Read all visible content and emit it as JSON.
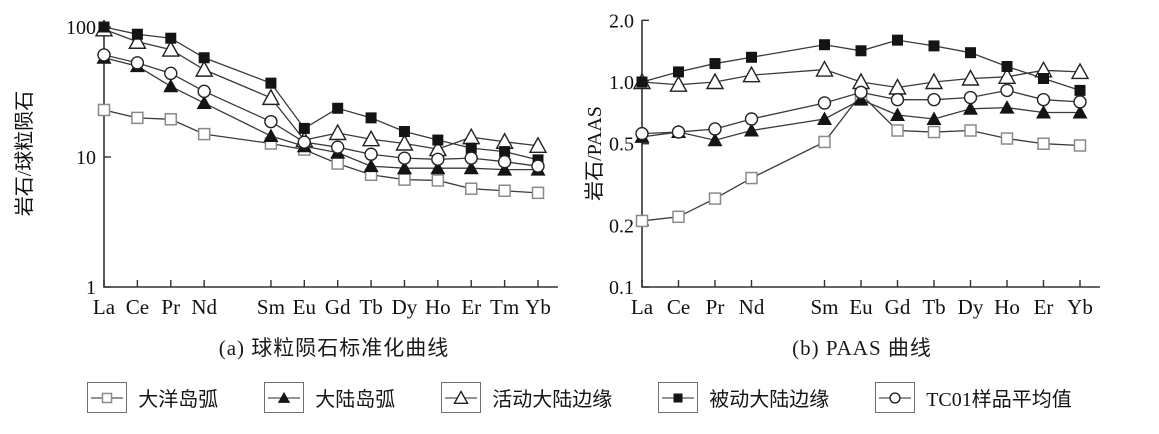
{
  "figure": {
    "background": "#ffffff",
    "caption_a": "(a) 球粒陨石标准化曲线",
    "caption_b": "(b) PAAS 曲线"
  },
  "colors": {
    "axis": "#333333",
    "line": "#3a3a3a",
    "marker_fill": "#141414",
    "marker_stroke": "#222222",
    "open_square_stroke": "#8a8a8a",
    "text": "#111111"
  },
  "chart_data": [
    {
      "type": "line",
      "title": "(a) 球粒陨石标准化曲线",
      "xlabel": "",
      "ylabel": "岩石/球粒陨石",
      "yscale": "log",
      "ylim": [
        1,
        110
      ],
      "yticks": [
        "100",
        "10",
        "1"
      ],
      "grid": false,
      "legend_position": "bottom-shared",
      "categories": [
        "La",
        "Ce",
        "Pr",
        "Nd",
        "Sm",
        "Eu",
        "Gd",
        "Tb",
        "Dy",
        "Ho",
        "Er",
        "Tm",
        "Yb"
      ],
      "gap_after_category": "Nd",
      "series": [
        {
          "name": "大洋岛弧",
          "marker": "open-square",
          "values": [
            23,
            20,
            19.5,
            15,
            12.7,
            11.4,
            8.9,
            7.3,
            6.7,
            6.6,
            5.7,
            5.5,
            5.3
          ]
        },
        {
          "name": "大陆岛弧",
          "marker": "filled-triangle",
          "values": [
            58,
            50,
            35,
            26,
            14.5,
            12.1,
            10.8,
            8.5,
            8.2,
            8.2,
            8.2,
            8.0,
            8.0
          ]
        },
        {
          "name": "活动大陆边缘",
          "marker": "open-triangle",
          "values": [
            96,
            77,
            67,
            47,
            28.5,
            13.5,
            15.3,
            13.7,
            12.7,
            11.5,
            14.2,
            13.1,
            12.2
          ]
        },
        {
          "name": "被动大陆边缘",
          "marker": "filled-square",
          "values": [
            100,
            88,
            82,
            58,
            37,
            16.6,
            23.7,
            20,
            15.7,
            13.5,
            11.7,
            11,
            9.5
          ]
        },
        {
          "name": "TC01样品平均值",
          "marker": "open-circle",
          "values": [
            61,
            53,
            44,
            32,
            18.7,
            13.0,
            11.9,
            10.5,
            9.8,
            9.6,
            9.8,
            9.2,
            8.5
          ]
        }
      ]
    },
    {
      "type": "line",
      "title": "(b) PAAS 曲线",
      "xlabel": "",
      "ylabel": "岩石/PAAS",
      "yscale": "log",
      "ylim": [
        0.1,
        2.0
      ],
      "yticks": [
        "2.0",
        "1.0",
        "0.5",
        "0.2",
        "0.1"
      ],
      "grid": false,
      "legend_position": "bottom-shared",
      "categories": [
        "La",
        "Ce",
        "Pr",
        "Nd",
        "Sm",
        "Eu",
        "Gd",
        "Tb",
        "Dy",
        "Ho",
        "Er",
        "Yb"
      ],
      "gap_after_category": "Nd",
      "series": [
        {
          "name": "大洋岛弧",
          "marker": "open-square",
          "values": [
            0.21,
            0.22,
            0.27,
            0.34,
            0.51,
            0.87,
            0.58,
            0.57,
            0.58,
            0.53,
            0.5,
            0.49
          ]
        },
        {
          "name": "大陆岛弧",
          "marker": "filled-triangle",
          "values": [
            0.54,
            0.57,
            0.52,
            0.58,
            0.66,
            0.82,
            0.69,
            0.66,
            0.74,
            0.75,
            0.71,
            0.71
          ]
        },
        {
          "name": "活动大陆边缘",
          "marker": "open-triangle",
          "values": [
            1.0,
            0.97,
            1.0,
            1.08,
            1.15,
            1.0,
            0.94,
            1.0,
            1.04,
            1.06,
            1.14,
            1.12
          ]
        },
        {
          "name": "被动大陆边缘",
          "marker": "filled-square",
          "values": [
            1.0,
            1.12,
            1.23,
            1.32,
            1.52,
            1.42,
            1.6,
            1.5,
            1.39,
            1.19,
            1.04,
            0.91
          ]
        },
        {
          "name": "TC01样品平均值",
          "marker": "open-circle",
          "values": [
            0.56,
            0.57,
            0.59,
            0.66,
            0.79,
            0.89,
            0.82,
            0.82,
            0.84,
            0.91,
            0.82,
            0.8
          ]
        }
      ]
    }
  ],
  "legend": {
    "items": [
      {
        "label": "大洋岛弧",
        "marker": "open-square"
      },
      {
        "label": "大陆岛弧",
        "marker": "filled-triangle"
      },
      {
        "label": "活动大陆边缘",
        "marker": "open-triangle"
      },
      {
        "label": "被动大陆边缘",
        "marker": "filled-square"
      },
      {
        "label": "TC01样品平均值",
        "marker": "open-circle"
      }
    ]
  }
}
